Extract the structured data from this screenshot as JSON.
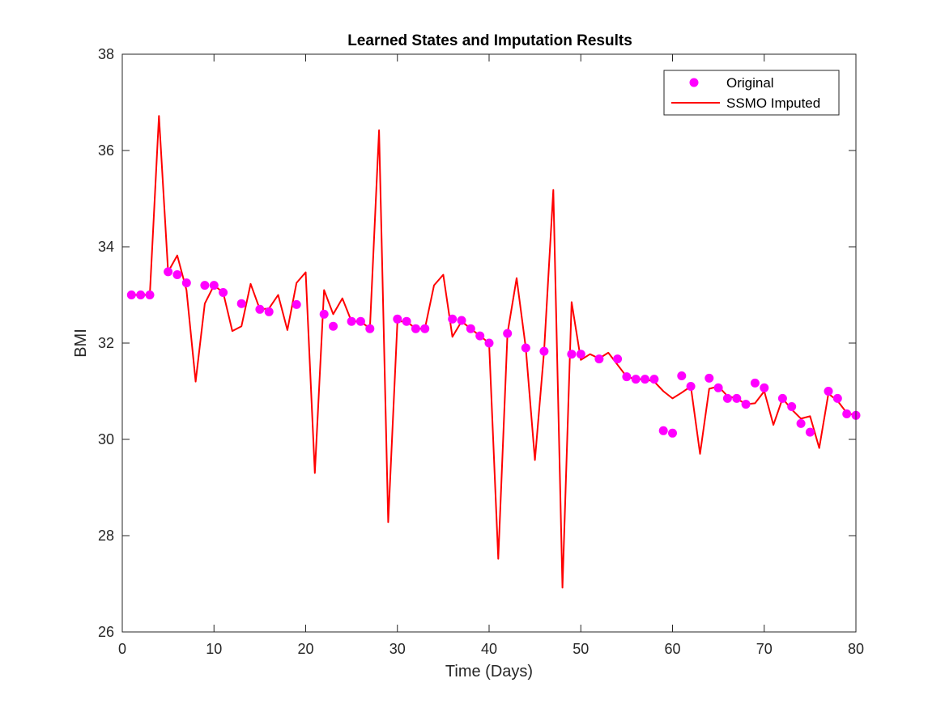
{
  "chart_data": {
    "type": "line",
    "title": "Learned States and Imputation Results",
    "xlabel": "Time (Days)",
    "ylabel": "BMI",
    "xlim": [
      0,
      80
    ],
    "ylim": [
      26,
      38
    ],
    "xticks": [
      0,
      10,
      20,
      30,
      40,
      50,
      60,
      70,
      80
    ],
    "yticks": [
      26,
      28,
      30,
      32,
      34,
      36,
      38
    ],
    "grid": false,
    "legend_position": "top-right",
    "series": [
      {
        "name": "Original",
        "kind": "scatter",
        "color": "#ff00ff",
        "points": [
          [
            1,
            33.0
          ],
          [
            2,
            33.0
          ],
          [
            3,
            33.0
          ],
          [
            5,
            33.48
          ],
          [
            6,
            33.42
          ],
          [
            7,
            33.25
          ],
          [
            9,
            33.2
          ],
          [
            10,
            33.2
          ],
          [
            11,
            33.05
          ],
          [
            13,
            32.82
          ],
          [
            15,
            32.7
          ],
          [
            16,
            32.65
          ],
          [
            19,
            32.8
          ],
          [
            22,
            32.6
          ],
          [
            23,
            32.35
          ],
          [
            25,
            32.45
          ],
          [
            26,
            32.45
          ],
          [
            27,
            32.3
          ],
          [
            30,
            32.5
          ],
          [
            31,
            32.45
          ],
          [
            32,
            32.3
          ],
          [
            33,
            32.3
          ],
          [
            36,
            32.5
          ],
          [
            37,
            32.47
          ],
          [
            38,
            32.3
          ],
          [
            39,
            32.15
          ],
          [
            40,
            32.0
          ],
          [
            42,
            32.2
          ],
          [
            44,
            31.9
          ],
          [
            46,
            31.83
          ],
          [
            49,
            31.77
          ],
          [
            50,
            31.77
          ],
          [
            52,
            31.67
          ],
          [
            54,
            31.67
          ],
          [
            55,
            31.3
          ],
          [
            56,
            31.25
          ],
          [
            57,
            31.25
          ],
          [
            58,
            31.25
          ],
          [
            59,
            30.18
          ],
          [
            60,
            30.13
          ],
          [
            61,
            31.32
          ],
          [
            62,
            31.1
          ],
          [
            64,
            31.27
          ],
          [
            65,
            31.07
          ],
          [
            66,
            30.85
          ],
          [
            67,
            30.85
          ],
          [
            68,
            30.73
          ],
          [
            69,
            31.17
          ],
          [
            70,
            31.07
          ],
          [
            72,
            30.85
          ],
          [
            73,
            30.68
          ],
          [
            74,
            30.33
          ],
          [
            75,
            30.15
          ],
          [
            77,
            31.0
          ],
          [
            78,
            30.85
          ],
          [
            79,
            30.53
          ],
          [
            80,
            30.5
          ]
        ]
      },
      {
        "name": "SSMO Imputed",
        "kind": "line",
        "color": "#ff0000",
        "points": [
          [
            1,
            33.0
          ],
          [
            2,
            33.0
          ],
          [
            3,
            33.0
          ],
          [
            4,
            36.72
          ],
          [
            5,
            33.48
          ],
          [
            6,
            33.82
          ],
          [
            7,
            33.1
          ],
          [
            8,
            31.2
          ],
          [
            9,
            32.82
          ],
          [
            10,
            33.2
          ],
          [
            11,
            33.05
          ],
          [
            12,
            32.25
          ],
          [
            13,
            32.35
          ],
          [
            14,
            33.23
          ],
          [
            15,
            32.7
          ],
          [
            16,
            32.72
          ],
          [
            17,
            33.0
          ],
          [
            18,
            32.27
          ],
          [
            19,
            33.25
          ],
          [
            20,
            33.47
          ],
          [
            21,
            29.3
          ],
          [
            22,
            33.1
          ],
          [
            23,
            32.6
          ],
          [
            24,
            32.93
          ],
          [
            25,
            32.45
          ],
          [
            26,
            32.45
          ],
          [
            27,
            32.3
          ],
          [
            28,
            36.42
          ],
          [
            29,
            28.28
          ],
          [
            30,
            32.45
          ],
          [
            31,
            32.45
          ],
          [
            32,
            32.3
          ],
          [
            33,
            32.3
          ],
          [
            34,
            33.2
          ],
          [
            35,
            33.42
          ],
          [
            36,
            32.13
          ],
          [
            37,
            32.45
          ],
          [
            38,
            32.3
          ],
          [
            39,
            32.15
          ],
          [
            40,
            32.0
          ],
          [
            41,
            27.52
          ],
          [
            42,
            32.2
          ],
          [
            43,
            33.35
          ],
          [
            44,
            31.9
          ],
          [
            45,
            29.57
          ],
          [
            46,
            31.83
          ],
          [
            47,
            35.18
          ],
          [
            48,
            26.92
          ],
          [
            49,
            32.85
          ],
          [
            50,
            31.65
          ],
          [
            51,
            31.77
          ],
          [
            52,
            31.68
          ],
          [
            53,
            31.8
          ],
          [
            54,
            31.55
          ],
          [
            55,
            31.3
          ],
          [
            56,
            31.25
          ],
          [
            57,
            31.25
          ],
          [
            58,
            31.2
          ],
          [
            59,
            31.0
          ],
          [
            60,
            30.85
          ],
          [
            61,
            30.97
          ],
          [
            62,
            31.1
          ],
          [
            63,
            29.7
          ],
          [
            64,
            31.05
          ],
          [
            65,
            31.1
          ],
          [
            66,
            30.9
          ],
          [
            67,
            30.85
          ],
          [
            68,
            30.73
          ],
          [
            69,
            30.75
          ],
          [
            70,
            31.0
          ],
          [
            71,
            30.3
          ],
          [
            72,
            30.85
          ],
          [
            73,
            30.62
          ],
          [
            74,
            30.43
          ],
          [
            75,
            30.48
          ],
          [
            76,
            29.82
          ],
          [
            77,
            30.95
          ],
          [
            78,
            30.8
          ],
          [
            79,
            30.55
          ],
          [
            80,
            30.5
          ]
        ]
      }
    ]
  }
}
